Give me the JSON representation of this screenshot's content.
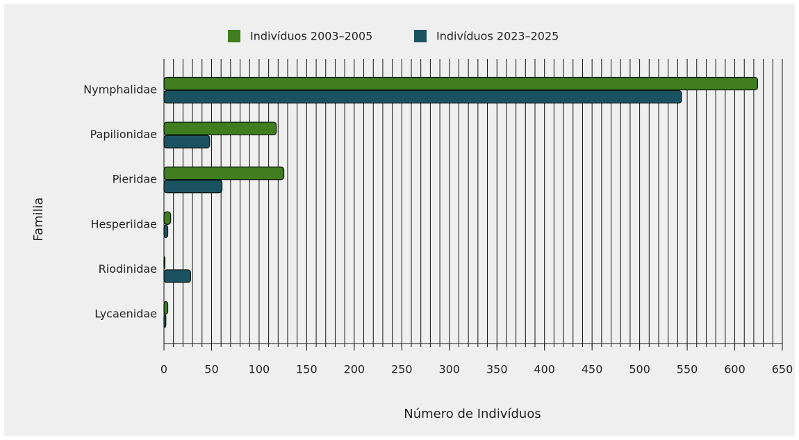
{
  "chart_data": {
    "type": "barh",
    "xlabel": "Número de Indivíduos",
    "ylabel": "Familia",
    "categories": [
      "Nymphalidae",
      "Papilionidae",
      "Pieridae",
      "Hesperiidae",
      "Riodinidae",
      "Lycaenidae"
    ],
    "series": [
      {
        "name": "Indivíduos 2003–2005",
        "color": "#3f7d1f",
        "values": [
          624,
          118,
          126,
          7,
          1,
          4
        ]
      },
      {
        "name": "Indivíduos 2023–2025",
        "color": "#1b5262",
        "values": [
          544,
          48,
          61,
          4,
          28,
          2
        ]
      }
    ],
    "xlim": [
      0,
      650
    ],
    "xticks": [
      0,
      50,
      100,
      150,
      200,
      250,
      300,
      350,
      400,
      450,
      500,
      550,
      600,
      650
    ],
    "xgrid": [
      0,
      10,
      20,
      30,
      40,
      50,
      60,
      70,
      80,
      90,
      100,
      110,
      120,
      130,
      140,
      150,
      160,
      170,
      180,
      190,
      200,
      210,
      220,
      230,
      240,
      250,
      260,
      270,
      280,
      290,
      300,
      310,
      320,
      330,
      340,
      350,
      360,
      370,
      380,
      390,
      400,
      410,
      420,
      430,
      440,
      450,
      460,
      470,
      480,
      490,
      500,
      510,
      520,
      530,
      540,
      550,
      560,
      570,
      580,
      590,
      600,
      610,
      620,
      630,
      640,
      650
    ],
    "grid": true,
    "legend": "top"
  }
}
